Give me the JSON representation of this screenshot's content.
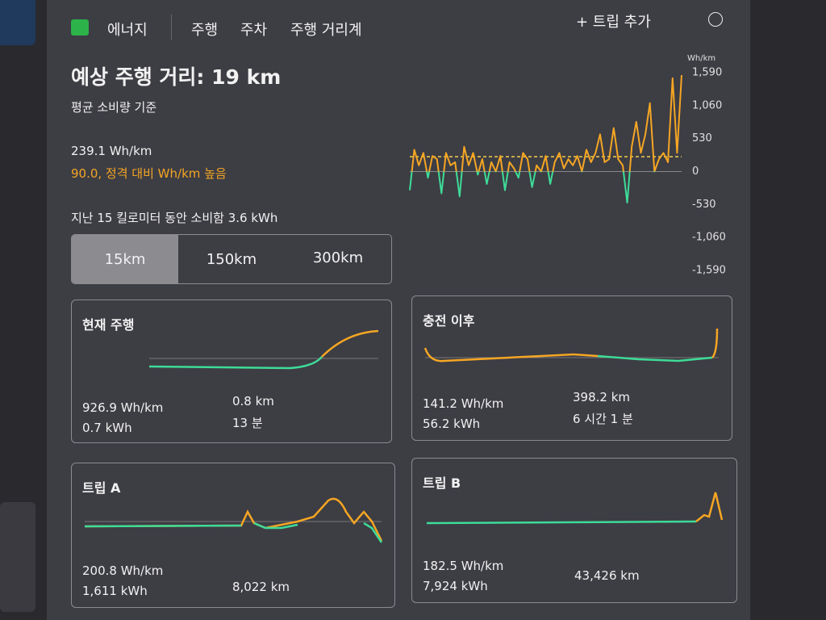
{
  "nav": {
    "tabs": [
      "에너지",
      "주행",
      "주차",
      "주행 거리계"
    ],
    "add_trip": "+ 트립 추가"
  },
  "header": {
    "title": "예상 주행 거리: 19 km",
    "subtitle": "평균 소비량 기준"
  },
  "stats": {
    "consumption": "239.1 Wh/km",
    "delta": "90.0, 정격 대비 Wh/km 높음",
    "recent": "지난 15 킬로미터 동안 소비함 3.6 kWh"
  },
  "range_buttons": [
    "15km",
    "150km",
    "300km"
  ],
  "chart_data": {
    "type": "line",
    "unit": "Wh/km",
    "ylim": [
      -1590,
      1590
    ],
    "yticks": [
      {
        "value": 1590,
        "label": "1,590"
      },
      {
        "value": 1060,
        "label": "1,060"
      },
      530,
      0,
      -530,
      {
        "value": -1060,
        "label": "-1,060"
      },
      {
        "value": -1590,
        "label": "-1,590"
      }
    ],
    "average": 239.1,
    "values": [
      -300,
      350,
      100,
      300,
      -100,
      250,
      200,
      -350,
      300,
      100,
      150,
      -400,
      400,
      100,
      300,
      -50,
      200,
      -200,
      150,
      0,
      250,
      -300,
      150,
      50,
      -100,
      300,
      200,
      -250,
      100,
      0,
      250,
      -200,
      150,
      300,
      50,
      200,
      100,
      250,
      0,
      350,
      150,
      300,
      600,
      150,
      200,
      700,
      200,
      100,
      -500,
      400,
      800,
      300,
      600,
      1100,
      0,
      200,
      300,
      150,
      1500,
      300,
      1550
    ]
  },
  "cards": [
    {
      "title": "현재 주행",
      "rows": [
        [
          "926.9 Wh/km",
          "0.8 km"
        ],
        [
          "0.7 kWh",
          "13 분"
        ]
      ]
    },
    {
      "title": "충전 이후",
      "rows": [
        [
          "141.2 Wh/km",
          "398.2 km"
        ],
        [
          "56.2 kWh",
          "6 시간 1 분"
        ]
      ]
    },
    {
      "title": "트립 A",
      "rows": [
        [
          "200.8 Wh/km",
          "8,022 km"
        ],
        [
          "1,611 kWh",
          ""
        ]
      ]
    },
    {
      "title": "트립 B",
      "rows": [
        [
          "182.5 Wh/km",
          "43,426 km"
        ],
        [
          "7,924 kWh",
          ""
        ]
      ]
    }
  ]
}
